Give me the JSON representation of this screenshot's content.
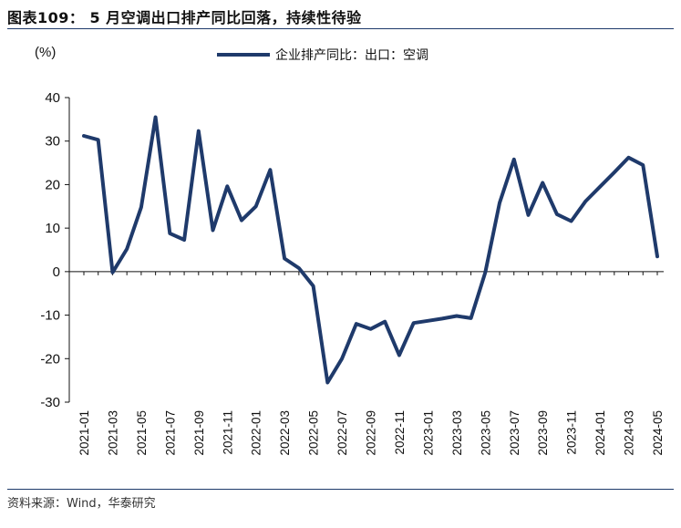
{
  "figure_title": "图表109：  5 月空调出口排产同比回落，持续性待验",
  "source": "资料来源：Wind，华泰研究",
  "chart_data": {
    "type": "line",
    "ylabel": "(%)",
    "ylim": [
      -30,
      40
    ],
    "yticks": [
      40,
      30,
      20,
      10,
      0,
      -10,
      -20,
      -30
    ],
    "grid": false,
    "legend_position": "top-center",
    "x": [
      "2021-01",
      "2021-02",
      "2021-03",
      "2021-04",
      "2021-05",
      "2021-06",
      "2021-07",
      "2021-08",
      "2021-09",
      "2021-10",
      "2021-11",
      "2021-12",
      "2022-01",
      "2022-02",
      "2022-03",
      "2022-04",
      "2022-05",
      "2022-06",
      "2022-07",
      "2022-08",
      "2022-09",
      "2022-10",
      "2022-11",
      "2022-12",
      "2023-01",
      "2023-02",
      "2023-03",
      "2023-04",
      "2023-05",
      "2023-06",
      "2023-07",
      "2023-08",
      "2023-09",
      "2023-10",
      "2023-11",
      "2023-12",
      "2024-01",
      "2024-02",
      "2024-03",
      "2024-04",
      "2024-05"
    ],
    "xtick_labels": [
      "2021-01",
      "2021-03",
      "2021-05",
      "2021-07",
      "2021-09",
      "2021-11",
      "2022-01",
      "2022-03",
      "2022-05",
      "2022-07",
      "2022-09",
      "2022-11",
      "2023-01",
      "2023-03",
      "2023-05",
      "2023-07",
      "2023-09",
      "2023-11",
      "2024-01",
      "2024-03",
      "2024-05"
    ],
    "series": [
      {
        "name": "企业排产同比：出口：空调",
        "color": "#1f3a6b",
        "values": [
          31.2,
          30.3,
          -0.2,
          5.2,
          14.8,
          35.5,
          8.8,
          7.3,
          32.3,
          9.5,
          19.6,
          11.8,
          15.0,
          23.4,
          3.0,
          0.8,
          -3.3,
          -25.5,
          -20.0,
          -12.0,
          -13.2,
          -11.5,
          -19.2,
          -11.8,
          -11.3,
          -10.8,
          -10.2,
          -10.7,
          -0.2,
          15.8,
          25.8,
          13.0,
          20.4,
          13.2,
          11.6,
          16.2,
          19.5,
          22.8,
          26.2,
          24.5,
          3.5
        ]
      }
    ]
  }
}
